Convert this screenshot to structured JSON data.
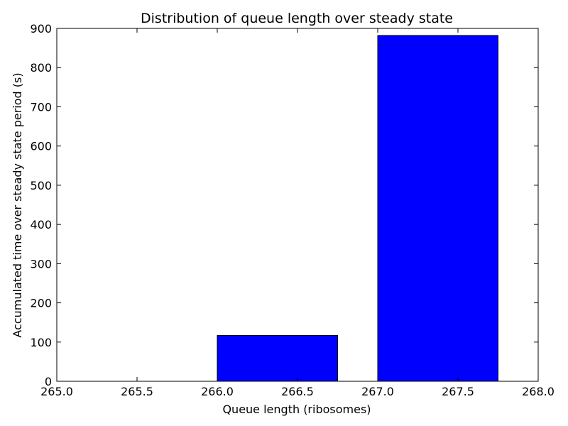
{
  "chart_data": {
    "type": "bar",
    "title": "Distribution of queue length over steady state",
    "xlabel": "Queue length (ribosomes)",
    "ylabel": "Accumulated time over steady state period (s)",
    "xlim": [
      265.0,
      268.0
    ],
    "ylim": [
      0,
      900
    ],
    "xticks": [
      "265.0",
      "265.5",
      "266.0",
      "266.5",
      "267.0",
      "267.5",
      "268.0"
    ],
    "yticks": [
      "0",
      "100",
      "200",
      "300",
      "400",
      "500",
      "600",
      "700",
      "800",
      "900"
    ],
    "bar_width": 0.75,
    "bars": [
      {
        "x": 265,
        "value": 0
      },
      {
        "x": 266,
        "value": 117
      },
      {
        "x": 267,
        "value": 882
      }
    ],
    "bar_color": "#0000ff",
    "grid": false,
    "legend": "none"
  }
}
